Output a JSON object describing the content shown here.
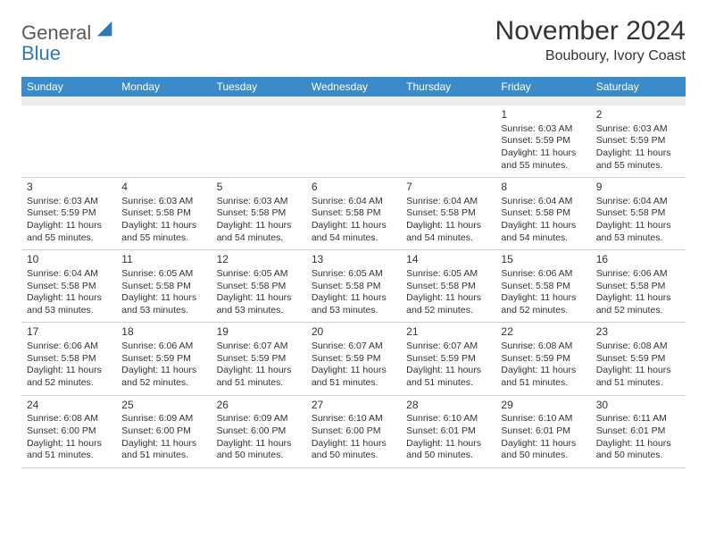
{
  "logo": {
    "word1": "General",
    "word2": "Blue"
  },
  "title": "November 2024",
  "location": "Bouboury, Ivory Coast",
  "colors": {
    "header_bg": "#3b8bc9",
    "header_fg": "#ffffff",
    "stripe_bg": "#ececec",
    "text": "#333333",
    "rule": "#cfcfcf",
    "logo_gray": "#5a5a5a",
    "logo_blue": "#2a7ab8",
    "page_bg": "#ffffff"
  },
  "typography": {
    "title_fontsize": 30,
    "location_fontsize": 16,
    "header_fontsize": 12,
    "cell_fontsize": 10.5,
    "daynum_fontsize": 12
  },
  "day_labels": [
    "Sunday",
    "Monday",
    "Tuesday",
    "Wednesday",
    "Thursday",
    "Friday",
    "Saturday"
  ],
  "cell_lines_template": [
    "Sunrise: {sr}",
    "Sunset: {ss}",
    "Daylight: {dlh}",
    "and {dlm}."
  ],
  "weeks": [
    [
      null,
      null,
      null,
      null,
      null,
      {
        "n": "1",
        "sr": "6:03 AM",
        "ss": "5:59 PM",
        "dlh": "11 hours",
        "dlm": "55 minutes"
      },
      {
        "n": "2",
        "sr": "6:03 AM",
        "ss": "5:59 PM",
        "dlh": "11 hours",
        "dlm": "55 minutes"
      }
    ],
    [
      {
        "n": "3",
        "sr": "6:03 AM",
        "ss": "5:59 PM",
        "dlh": "11 hours",
        "dlm": "55 minutes"
      },
      {
        "n": "4",
        "sr": "6:03 AM",
        "ss": "5:58 PM",
        "dlh": "11 hours",
        "dlm": "55 minutes"
      },
      {
        "n": "5",
        "sr": "6:03 AM",
        "ss": "5:58 PM",
        "dlh": "11 hours",
        "dlm": "54 minutes"
      },
      {
        "n": "6",
        "sr": "6:04 AM",
        "ss": "5:58 PM",
        "dlh": "11 hours",
        "dlm": "54 minutes"
      },
      {
        "n": "7",
        "sr": "6:04 AM",
        "ss": "5:58 PM",
        "dlh": "11 hours",
        "dlm": "54 minutes"
      },
      {
        "n": "8",
        "sr": "6:04 AM",
        "ss": "5:58 PM",
        "dlh": "11 hours",
        "dlm": "54 minutes"
      },
      {
        "n": "9",
        "sr": "6:04 AM",
        "ss": "5:58 PM",
        "dlh": "11 hours",
        "dlm": "53 minutes"
      }
    ],
    [
      {
        "n": "10",
        "sr": "6:04 AM",
        "ss": "5:58 PM",
        "dlh": "11 hours",
        "dlm": "53 minutes"
      },
      {
        "n": "11",
        "sr": "6:05 AM",
        "ss": "5:58 PM",
        "dlh": "11 hours",
        "dlm": "53 minutes"
      },
      {
        "n": "12",
        "sr": "6:05 AM",
        "ss": "5:58 PM",
        "dlh": "11 hours",
        "dlm": "53 minutes"
      },
      {
        "n": "13",
        "sr": "6:05 AM",
        "ss": "5:58 PM",
        "dlh": "11 hours",
        "dlm": "53 minutes"
      },
      {
        "n": "14",
        "sr": "6:05 AM",
        "ss": "5:58 PM",
        "dlh": "11 hours",
        "dlm": "52 minutes"
      },
      {
        "n": "15",
        "sr": "6:06 AM",
        "ss": "5:58 PM",
        "dlh": "11 hours",
        "dlm": "52 minutes"
      },
      {
        "n": "16",
        "sr": "6:06 AM",
        "ss": "5:58 PM",
        "dlh": "11 hours",
        "dlm": "52 minutes"
      }
    ],
    [
      {
        "n": "17",
        "sr": "6:06 AM",
        "ss": "5:58 PM",
        "dlh": "11 hours",
        "dlm": "52 minutes"
      },
      {
        "n": "18",
        "sr": "6:06 AM",
        "ss": "5:59 PM",
        "dlh": "11 hours",
        "dlm": "52 minutes"
      },
      {
        "n": "19",
        "sr": "6:07 AM",
        "ss": "5:59 PM",
        "dlh": "11 hours",
        "dlm": "51 minutes"
      },
      {
        "n": "20",
        "sr": "6:07 AM",
        "ss": "5:59 PM",
        "dlh": "11 hours",
        "dlm": "51 minutes"
      },
      {
        "n": "21",
        "sr": "6:07 AM",
        "ss": "5:59 PM",
        "dlh": "11 hours",
        "dlm": "51 minutes"
      },
      {
        "n": "22",
        "sr": "6:08 AM",
        "ss": "5:59 PM",
        "dlh": "11 hours",
        "dlm": "51 minutes"
      },
      {
        "n": "23",
        "sr": "6:08 AM",
        "ss": "5:59 PM",
        "dlh": "11 hours",
        "dlm": "51 minutes"
      }
    ],
    [
      {
        "n": "24",
        "sr": "6:08 AM",
        "ss": "6:00 PM",
        "dlh": "11 hours",
        "dlm": "51 minutes"
      },
      {
        "n": "25",
        "sr": "6:09 AM",
        "ss": "6:00 PM",
        "dlh": "11 hours",
        "dlm": "51 minutes"
      },
      {
        "n": "26",
        "sr": "6:09 AM",
        "ss": "6:00 PM",
        "dlh": "11 hours",
        "dlm": "50 minutes"
      },
      {
        "n": "27",
        "sr": "6:10 AM",
        "ss": "6:00 PM",
        "dlh": "11 hours",
        "dlm": "50 minutes"
      },
      {
        "n": "28",
        "sr": "6:10 AM",
        "ss": "6:01 PM",
        "dlh": "11 hours",
        "dlm": "50 minutes"
      },
      {
        "n": "29",
        "sr": "6:10 AM",
        "ss": "6:01 PM",
        "dlh": "11 hours",
        "dlm": "50 minutes"
      },
      {
        "n": "30",
        "sr": "6:11 AM",
        "ss": "6:01 PM",
        "dlh": "11 hours",
        "dlm": "50 minutes"
      }
    ]
  ]
}
